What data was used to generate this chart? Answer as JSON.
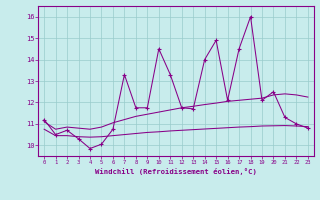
{
  "x": [
    0,
    1,
    2,
    3,
    4,
    5,
    6,
    7,
    8,
    9,
    10,
    11,
    12,
    13,
    14,
    15,
    16,
    17,
    18,
    19,
    20,
    21,
    22,
    23
  ],
  "spiky": [
    11.2,
    10.5,
    10.7,
    10.3,
    9.85,
    10.05,
    10.75,
    13.3,
    11.75,
    11.75,
    14.5,
    13.3,
    11.75,
    11.7,
    14.0,
    14.9,
    12.1,
    14.5,
    16.0,
    12.1,
    12.5,
    11.3,
    11.0,
    10.8
  ],
  "smooth_upper": [
    11.1,
    10.75,
    10.85,
    10.8,
    10.75,
    10.85,
    11.05,
    11.2,
    11.35,
    11.45,
    11.55,
    11.65,
    11.75,
    11.82,
    11.9,
    11.97,
    12.05,
    12.1,
    12.15,
    12.2,
    12.35,
    12.4,
    12.35,
    12.25
  ],
  "smooth_lower": [
    10.75,
    10.45,
    10.45,
    10.4,
    10.38,
    10.4,
    10.45,
    10.5,
    10.55,
    10.6,
    10.63,
    10.67,
    10.7,
    10.73,
    10.76,
    10.79,
    10.82,
    10.85,
    10.87,
    10.9,
    10.91,
    10.92,
    10.9,
    10.87
  ],
  "ylim": [
    9.5,
    16.5
  ],
  "yticks": [
    10,
    11,
    12,
    13,
    14,
    15,
    16
  ],
  "xticks": [
    0,
    1,
    2,
    3,
    4,
    5,
    6,
    7,
    8,
    9,
    10,
    11,
    12,
    13,
    14,
    15,
    16,
    17,
    18,
    19,
    20,
    21,
    22,
    23
  ],
  "xlabel": "Windchill (Refroidissement éolien,°C)",
  "line_color": "#880088",
  "bg_color": "#c8ecec",
  "grid_color": "#99cccc",
  "axis_color": "#880088"
}
